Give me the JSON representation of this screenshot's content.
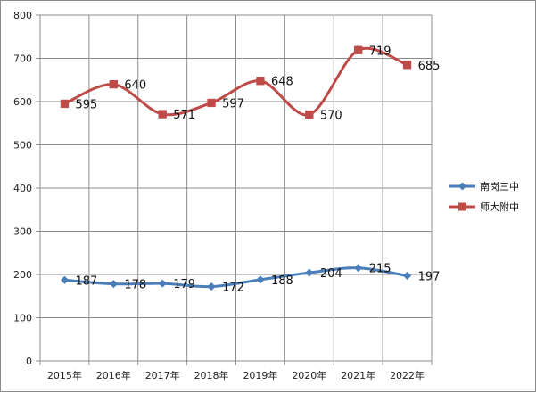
{
  "chart_data": {
    "type": "line",
    "title": "",
    "xlabel": "",
    "ylabel": "",
    "categories": [
      "2015年",
      "2016年",
      "2017年",
      "2018年",
      "2019年",
      "2020年",
      "2021年",
      "2022年"
    ],
    "ylim": [
      0,
      800
    ],
    "yticks": [
      0,
      100,
      200,
      300,
      400,
      500,
      600,
      700,
      800
    ],
    "grid": true,
    "legend": "right",
    "series": [
      {
        "name": "南岗三中",
        "color": "#4a7ebb",
        "marker": "diamond",
        "values": [
          187,
          178,
          179,
          172,
          188,
          204,
          215,
          197
        ]
      },
      {
        "name": "师大附中",
        "color": "#be4b48",
        "marker": "square",
        "values": [
          595,
          640,
          571,
          597,
          648,
          570,
          719,
          685
        ]
      }
    ]
  }
}
